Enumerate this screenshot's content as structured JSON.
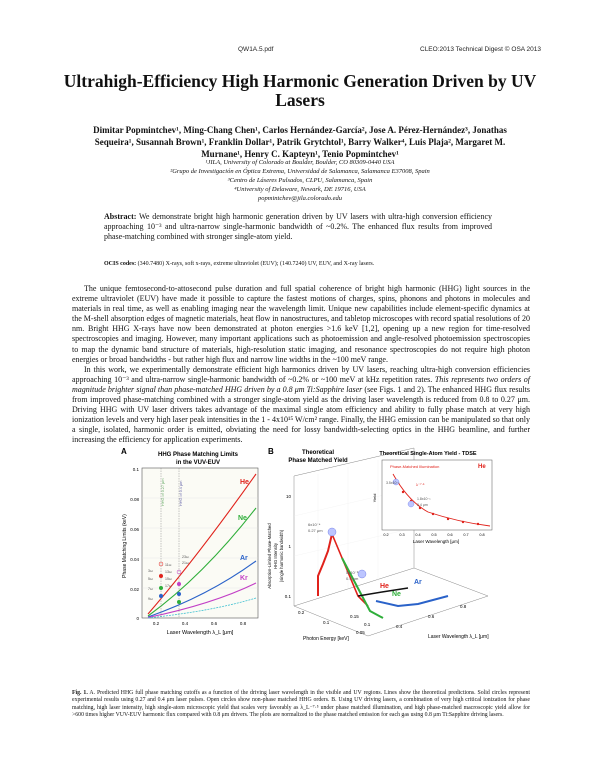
{
  "header": {
    "left": "QW1A.5.pdf",
    "right": "CLEO:2013 Technical Digest © OSA 2013"
  },
  "title": "Ultrahigh-Efficiency High Harmonic Generation Driven by UV Lasers",
  "authors": "Dimitar Popmintchev¹, Ming-Chang Chen¹, Carlos Hernández-García², Jose A. Pérez-Hernández³, Jonathas Sequeira¹, Susannah Brown¹, Franklin Dollar¹, Patrik Grytchtol¹, Barry Walker⁴, Luis Plaja², Margaret M. Murnane¹, Henry C. Kapteyn¹, Tenio Popmintchev¹",
  "affiliations": [
    "¹JILA, University of Colorado at Boulder, Boulder, CO 80309-0440 USA",
    "²Grupo de Investigación en Óptica Extrema, Universidad de Salamanca, Salamanca E37008, Spain",
    "³Centro de Láseres Pulsados, CLPU, Salamanca, Spain",
    "⁴University of Delaware, Newark, DE 19716, USA",
    "popmintchev@jila.colorado.edu"
  ],
  "abstract": {
    "label": "Abstract:",
    "text": "We demonstrate bright high harmonic generation driven by UV lasers with ultra-high conversion efficiency approaching 10⁻³ and ultra-narrow single-harmonic bandwidth of ~0.2%. The enhanced flux results from improved phase-matching combined with stronger single-atom yield."
  },
  "ocis": {
    "label": "OCIS codes:",
    "text": "(340.7480) X-rays, soft x-rays, extreme ultraviolet (EUV); (140.7240) UV, EUV, and X-ray lasers."
  },
  "body": {
    "p1": "The unique femtosecond-to-attosecond pulse duration and full spatial coherence of bright high harmonic (HHG) light sources in the extreme ultraviolet (EUV) have made it possible to capture the fastest motions of charges, spins, phonons and photons in molecules and materials in real time, as well as enabling imaging near the wavelength limit. Unique new capabilities include element-specific dynamics at the M-shell absorption edges of magnetic materials, heat flow in nanostructures, and tabletop microscopes with record spatial resolutions of 20 nm. Bright HHG X-rays have now been demonstrated at photon energies >1.6 keV [1,2], opening up a new region for time-resolved spectroscopies and imaging. However, many important applications such as photoemission and angle-resolved photoemission spectroscopies to map the dynamic band structure of materials, high-resolution static imaging, and resonance spectroscopies do not require high photon energies or broad bandwidths - but rather high flux and narrow line widths in the ~100 meV range.",
    "p2a": "In this work, we experimentally demonstrate efficient high harmonics driven by UV lasers, reaching ultra-high conversion efficiencies approaching 10⁻³ and ultra-narrow single-harmonic bandwidth of ~0.2% or ~100 meV at kHz repetition rates.",
    "p2b": "This represents two orders of magnitude brighter signal than phase-matched HHG driven by a 0.8 μm Ti:Sapphire laser",
    "p2c": "(see Figs. 1 and 2). The enhanced HHG flux results from improved phase-matching combined with a stronger single-atom yield as the driving laser wavelength is reduced from 0.8 to 0.27 μm. Driving HHG with UV laser drivers takes advantage of the maximal single atom efficiency and ability to fully phase match at very high ionization levels and very high laser peak intensities in the 1 - 4x10¹⁵ W/cm² range. Finally, the HHG emission can be manipulated so that only a single, isolated, harmonic order is emitted, obviating the need for lossy bandwidth-selecting optics in the HHG beamline, and further increasing the efficiency for application experiments."
  },
  "figure": {
    "panelA": {
      "label": "A",
      "title_l1": "HHG Phase Matching Limits",
      "title_l2": "in the VUV-EUV",
      "ylabel": "Phase Matching Limits (keV)",
      "xlabel": "Laser Wavelength λ_L [μm]",
      "yticks": [
        "0.1",
        "0.08",
        "0.06",
        "0.04",
        "0.02",
        "0"
      ],
      "xticks": [
        "0.2",
        "0.4",
        "0.6",
        "0.8"
      ],
      "series": [
        {
          "name": "He",
          "color": "#e0221b"
        },
        {
          "name": "Ne",
          "color": "#2fae3a"
        },
        {
          "name": "Ar",
          "color": "#2a62c9"
        },
        {
          "name": "Kr",
          "color": "#c23fc6"
        }
      ],
      "annotations": [
        "HHG of 0.27 μm",
        "HHG of 0.4 μm",
        "3ω",
        "5ω",
        "7ω",
        "9ω",
        "11ω",
        "13ω",
        "15ω",
        "17ω",
        "21ω",
        "23ω"
      ]
    },
    "panelB": {
      "label": "B",
      "title_l1": "Theoretical",
      "title_l2": "Phase Matched Yield",
      "ylabel_l1": "Absorption-Limited Phase-Matched",
      "ylabel_l2": "HHG Intensity",
      "ylabel_l3": "(single harmonic bandwidth)",
      "zticks": [
        "10",
        "1",
        "0.1"
      ],
      "xlabel": "Photon Energy [keV]",
      "xticks": [
        "0.2",
        "0.1"
      ],
      "xticks2": [
        "0.4",
        "0.6",
        "0.8"
      ],
      "wlabel": "Laser Wavelength λ_L [μm]",
      "wticks": [
        "0.4",
        "0.6",
        "0.8"
      ],
      "xtick_small": [
        "0.05",
        "0.1",
        "0.15"
      ],
      "annotations": [
        "6x10⁻⁴",
        "0.27 μm",
        "5x10⁻⁵",
        "0.4 μm"
      ],
      "series": [
        {
          "name": "He",
          "color": "#e0221b"
        },
        {
          "name": "Ne",
          "color": "#2fae3a"
        },
        {
          "name": "Ar",
          "color": "#2a62c9"
        }
      ]
    },
    "inset": {
      "title": "Theoretical Single-Atom Yield - TDSE",
      "legend": "Phase-Matched Illumination",
      "he": "He",
      "ylabel": "Yield",
      "xlabel": "Laser Wavelength [μm]",
      "xticks": [
        "0.2",
        "0.3",
        "0.4",
        "0.5",
        "0.6",
        "0.7",
        "0.8"
      ],
      "annotations": [
        "3.5x10⁻¹",
        "λ⁻⁷·⁵",
        "1.8x10⁻¹",
        "0.4 μm"
      ],
      "color": "#e0221b"
    }
  },
  "caption": {
    "label": "Fig. 1.",
    "text": "A. Predicted HHG full phase matching cutoffs as a function of the driving laser wavelength in the visible and UV regions. Lines show the theoretical predictions. Solid circles represent experimental results using 0.27 and 0.4 μm laser pulses. Open circles show non-phase matched HHG orders. B. Using UV driving lasers, a combination of very high critical ionization for phase matching, high laser intensity, high single-atom microscopic yield that scales very favorably as λ_L⁻⁷·⁵ under phase matched illumination, and high phase-matched macroscopic yield allow for >600 times higher VUV-EUV harmonic flux compared with 0.8 μm drivers. The plots are normalized to the phase matched emission for each gas using 0.8 μm Ti:Sapphire driving lasers."
  }
}
